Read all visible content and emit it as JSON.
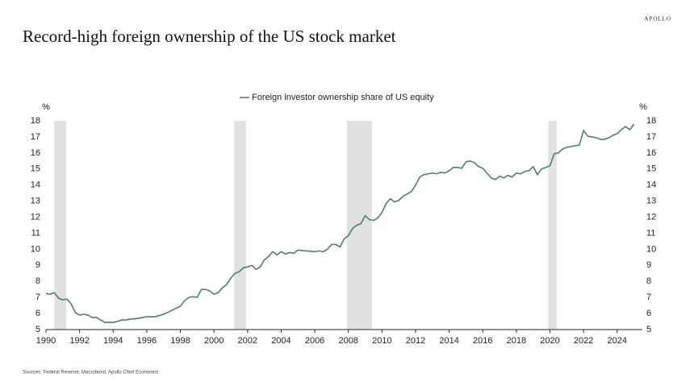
{
  "chart_data": {
    "type": "line",
    "title": "Record-high foreign ownership of the US stock market",
    "brand": "APOLLO",
    "source": "Sources: Federal Reserve, Macrobond, Apollo Chief Economist",
    "y_label": "%",
    "y2_label": "%",
    "xlim": [
      1990,
      2025.5
    ],
    "xticks": [
      1990,
      1992,
      1994,
      1996,
      1998,
      2000,
      2002,
      2004,
      2006,
      2008,
      2010,
      2012,
      2014,
      2016,
      2018,
      2020,
      2022,
      2024
    ],
    "ylim": [
      5,
      18
    ],
    "yticks": [
      5,
      6,
      7,
      8,
      9,
      10,
      11,
      12,
      13,
      14,
      15,
      16,
      17,
      18
    ],
    "y2lim": [
      5,
      18
    ],
    "y2ticks": [
      5,
      6,
      7,
      8,
      9,
      10,
      11,
      12,
      13,
      14,
      15,
      16,
      17,
      18
    ],
    "shaded_periods": [
      [
        1990.5,
        1991.2
      ],
      [
        2001.2,
        2001.9
      ],
      [
        2007.9,
        2009.4
      ],
      [
        2019.9,
        2020.4
      ]
    ],
    "shade_color": "#e1e1e1",
    "legend": "top",
    "x": [
      1990,
      1990.25,
      1990.5,
      1990.75,
      1991,
      1991.25,
      1991.5,
      1991.75,
      1992,
      1992.25,
      1992.5,
      1992.75,
      1993,
      1993.25,
      1993.5,
      1993.75,
      1994,
      1994.25,
      1994.5,
      1994.75,
      1995,
      1995.5,
      1996,
      1996.5,
      1997,
      1997.5,
      1998,
      1998.25,
      1998.5,
      1998.75,
      1999,
      1999.25,
      1999.5,
      1999.75,
      2000,
      2000.25,
      2000.5,
      2000.75,
      2001,
      2001.25,
      2001.5,
      2001.75,
      2002,
      2002.25,
      2002.5,
      2002.75,
      2003,
      2003.25,
      2003.5,
      2003.75,
      2004,
      2004.25,
      2004.5,
      2004.75,
      2005,
      2005.25,
      2005.5,
      2005.75,
      2006,
      2006.25,
      2006.5,
      2006.75,
      2007,
      2007.25,
      2007.5,
      2007.75,
      2008,
      2008.25,
      2008.5,
      2008.75,
      2009,
      2009.25,
      2009.5,
      2009.75,
      2010,
      2010.25,
      2010.5,
      2010.75,
      2011,
      2011.25,
      2011.5,
      2011.75,
      2012,
      2012.25,
      2012.5,
      2012.75,
      2013,
      2013.25,
      2013.5,
      2013.75,
      2014,
      2014.25,
      2014.5,
      2014.75,
      2015,
      2015.25,
      2015.5,
      2015.75,
      2016,
      2016.25,
      2016.5,
      2016.75,
      2017,
      2017.25,
      2017.5,
      2017.75,
      2018,
      2018.25,
      2018.5,
      2018.75,
      2019,
      2019.25,
      2019.5,
      2019.75,
      2020,
      2020.25,
      2020.5,
      2020.75,
      2021,
      2021.25,
      2021.5,
      2021.75,
      2022,
      2022.25,
      2022.5,
      2022.75,
      2023,
      2023.25,
      2023.5,
      2023.75,
      2024,
      2024.25,
      2024.5,
      2024.75,
      2025
    ],
    "series": [
      {
        "name": "Foreign investor ownership share of US equity",
        "color": "#527d68",
        "values": [
          7.25,
          7.2,
          7.3,
          6.95,
          6.85,
          6.9,
          6.6,
          6.05,
          5.9,
          5.95,
          5.9,
          5.75,
          5.75,
          5.6,
          5.45,
          5.45,
          5.45,
          5.5,
          5.6,
          5.6,
          5.65,
          5.7,
          5.8,
          5.8,
          5.95,
          6.2,
          6.45,
          6.8,
          7.0,
          7.05,
          7.0,
          7.5,
          7.5,
          7.4,
          7.2,
          7.3,
          7.6,
          7.8,
          8.2,
          8.5,
          8.6,
          8.85,
          8.9,
          9.0,
          8.75,
          8.9,
          9.35,
          9.55,
          9.85,
          9.65,
          9.85,
          9.7,
          9.8,
          9.75,
          9.95,
          9.92,
          9.9,
          9.88,
          9.85,
          9.9,
          9.85,
          10.0,
          10.3,
          10.3,
          10.15,
          10.65,
          10.85,
          11.3,
          11.5,
          11.6,
          12.1,
          11.85,
          11.8,
          11.95,
          12.3,
          12.85,
          13.15,
          12.95,
          13.05,
          13.3,
          13.45,
          13.6,
          14.0,
          14.5,
          14.65,
          14.7,
          14.75,
          14.7,
          14.8,
          14.75,
          14.9,
          15.1,
          15.1,
          15.05,
          15.45,
          15.5,
          15.4,
          15.15,
          15.05,
          14.75,
          14.45,
          14.35,
          14.55,
          14.45,
          14.6,
          14.5,
          14.75,
          14.7,
          14.85,
          14.9,
          15.15,
          14.65,
          15.0,
          15.1,
          15.2,
          15.95,
          16.0,
          16.25,
          16.35,
          16.4,
          16.45,
          16.5,
          17.4,
          17.05,
          17.0,
          16.95,
          16.85,
          16.85,
          16.95,
          17.1,
          17.2,
          17.45,
          17.65,
          17.45,
          17.8
        ]
      }
    ]
  }
}
